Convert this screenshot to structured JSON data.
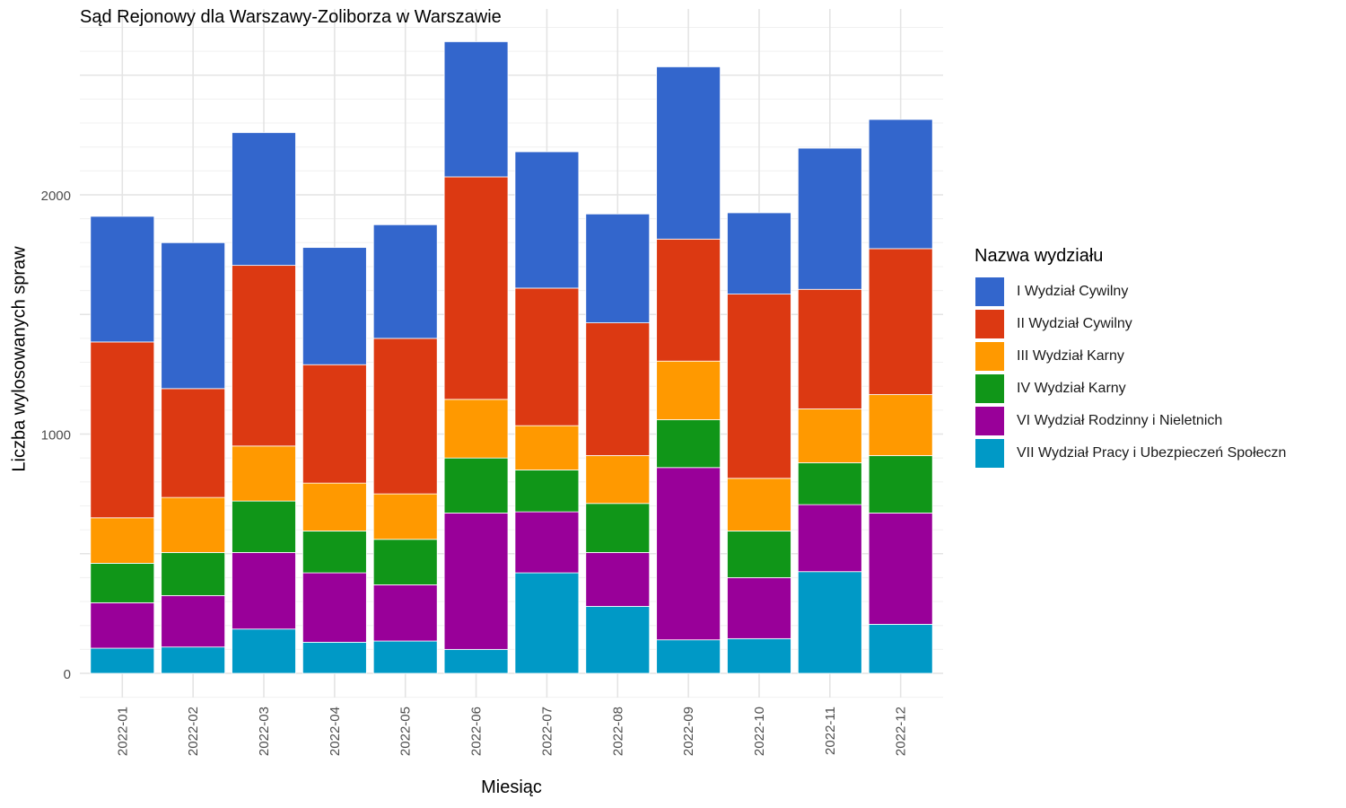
{
  "chart_data": {
    "type": "bar",
    "stacked": true,
    "title": "Sąd Rejonowy dla Warszawy-Zoliborza w Warszawie",
    "xlabel": "Miesiąc",
    "ylabel": "Liczba wylosowanych spraw",
    "ylim": [
      -100,
      2780
    ],
    "yticks": [
      0,
      1000,
      2000
    ],
    "grid": true,
    "legend_position": "right",
    "legend_title": "Nazwa wydziału",
    "categories": [
      "2022-01",
      "2022-02",
      "2022-03",
      "2022-04",
      "2022-05",
      "2022-06",
      "2022-07",
      "2022-08",
      "2022-09",
      "2022-10",
      "2022-11",
      "2022-12"
    ],
    "series": [
      {
        "name": "I Wydział Cywilny",
        "color": "#3366CC",
        "values": [
          525,
          610,
          555,
          490,
          475,
          565,
          570,
          455,
          720,
          340,
          590,
          540
        ]
      },
      {
        "name": "II Wydział Cywilny",
        "color": "#DC3912",
        "values": [
          735,
          455,
          755,
          495,
          650,
          930,
          575,
          555,
          510,
          770,
          500,
          610
        ]
      },
      {
        "name": "III Wydział Karny",
        "color": "#FF9900",
        "values": [
          190,
          230,
          230,
          200,
          190,
          245,
          185,
          200,
          245,
          220,
          225,
          255
        ]
      },
      {
        "name": "IV Wydział Karny",
        "color": "#109618",
        "values": [
          165,
          180,
          215,
          175,
          190,
          230,
          175,
          205,
          200,
          195,
          175,
          240
        ]
      },
      {
        "name": "VI Wydział Rodzinny i Nieletnich",
        "color": "#990099",
        "values": [
          190,
          215,
          320,
          290,
          235,
          570,
          255,
          225,
          720,
          255,
          280,
          465
        ]
      },
      {
        "name": "VII Wydział Pracy i Ubezpieczeń Społeczn",
        "color": "#0099C6",
        "values": [
          105,
          110,
          185,
          130,
          135,
          100,
          420,
          280,
          140,
          145,
          425,
          205
        ]
      }
    ]
  }
}
